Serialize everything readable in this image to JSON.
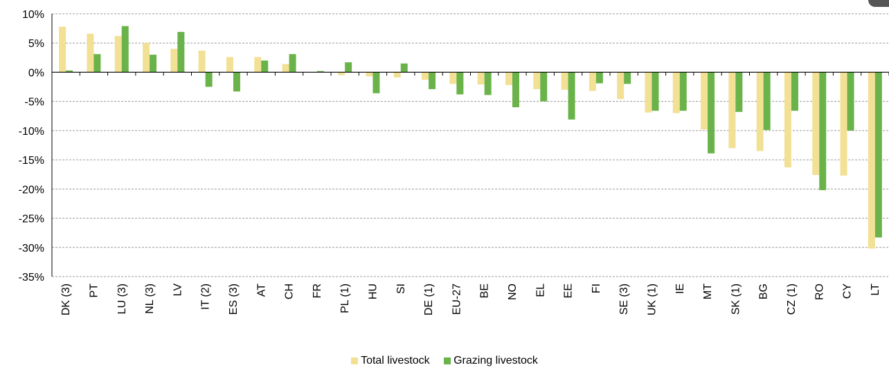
{
  "chart_data": {
    "type": "bar",
    "categories": [
      "DK (3)",
      "PT",
      "LU (3)",
      "NL (3)",
      "LV",
      "IT (2)",
      "ES (3)",
      "AT",
      "CH",
      "FR",
      "PL (1)",
      "HU",
      "SI",
      "DE (1)",
      "EU-27",
      "BE",
      "NO",
      "EL",
      "EE",
      "FI",
      "SE (3)",
      "UK (1)",
      "IE",
      "MT",
      "SK (1)",
      "BG",
      "CZ (1)",
      "RO",
      "CY",
      "LT"
    ],
    "series": [
      {
        "name": "Total livestock",
        "color": "#f2e095",
        "values": [
          7.8,
          6.6,
          6.2,
          5.0,
          4.0,
          3.7,
          2.6,
          2.6,
          1.4,
          0.0,
          -0.5,
          -0.7,
          -0.9,
          -1.3,
          -2.0,
          -2.1,
          -2.2,
          -2.9,
          -3.0,
          -3.2,
          -4.6,
          -6.9,
          -7.0,
          -9.8,
          -13.0,
          -13.5,
          -16.3,
          -17.6,
          -17.7,
          -30.2
        ]
      },
      {
        "name": "Grazing livestock",
        "color": "#6ab34a",
        "values": [
          0.3,
          3.1,
          7.9,
          3.0,
          6.9,
          -2.5,
          -3.3,
          2.0,
          3.1,
          0.2,
          1.7,
          -3.6,
          1.5,
          -2.9,
          -3.8,
          -3.9,
          -6.0,
          -5.0,
          -8.1,
          -1.9,
          -2.0,
          -6.6,
          -6.6,
          -13.9,
          -6.8,
          -9.9,
          -6.6,
          -20.2,
          -10.0,
          -28.3
        ]
      }
    ],
    "yticks": [
      "10%",
      "5%",
      "0%",
      "-5%",
      "-10%",
      "-15%",
      "-20%",
      "-25%",
      "-30%",
      "-35%"
    ],
    "ylim": [
      -35,
      10
    ],
    "grid": true,
    "legend_position": "bottom"
  }
}
